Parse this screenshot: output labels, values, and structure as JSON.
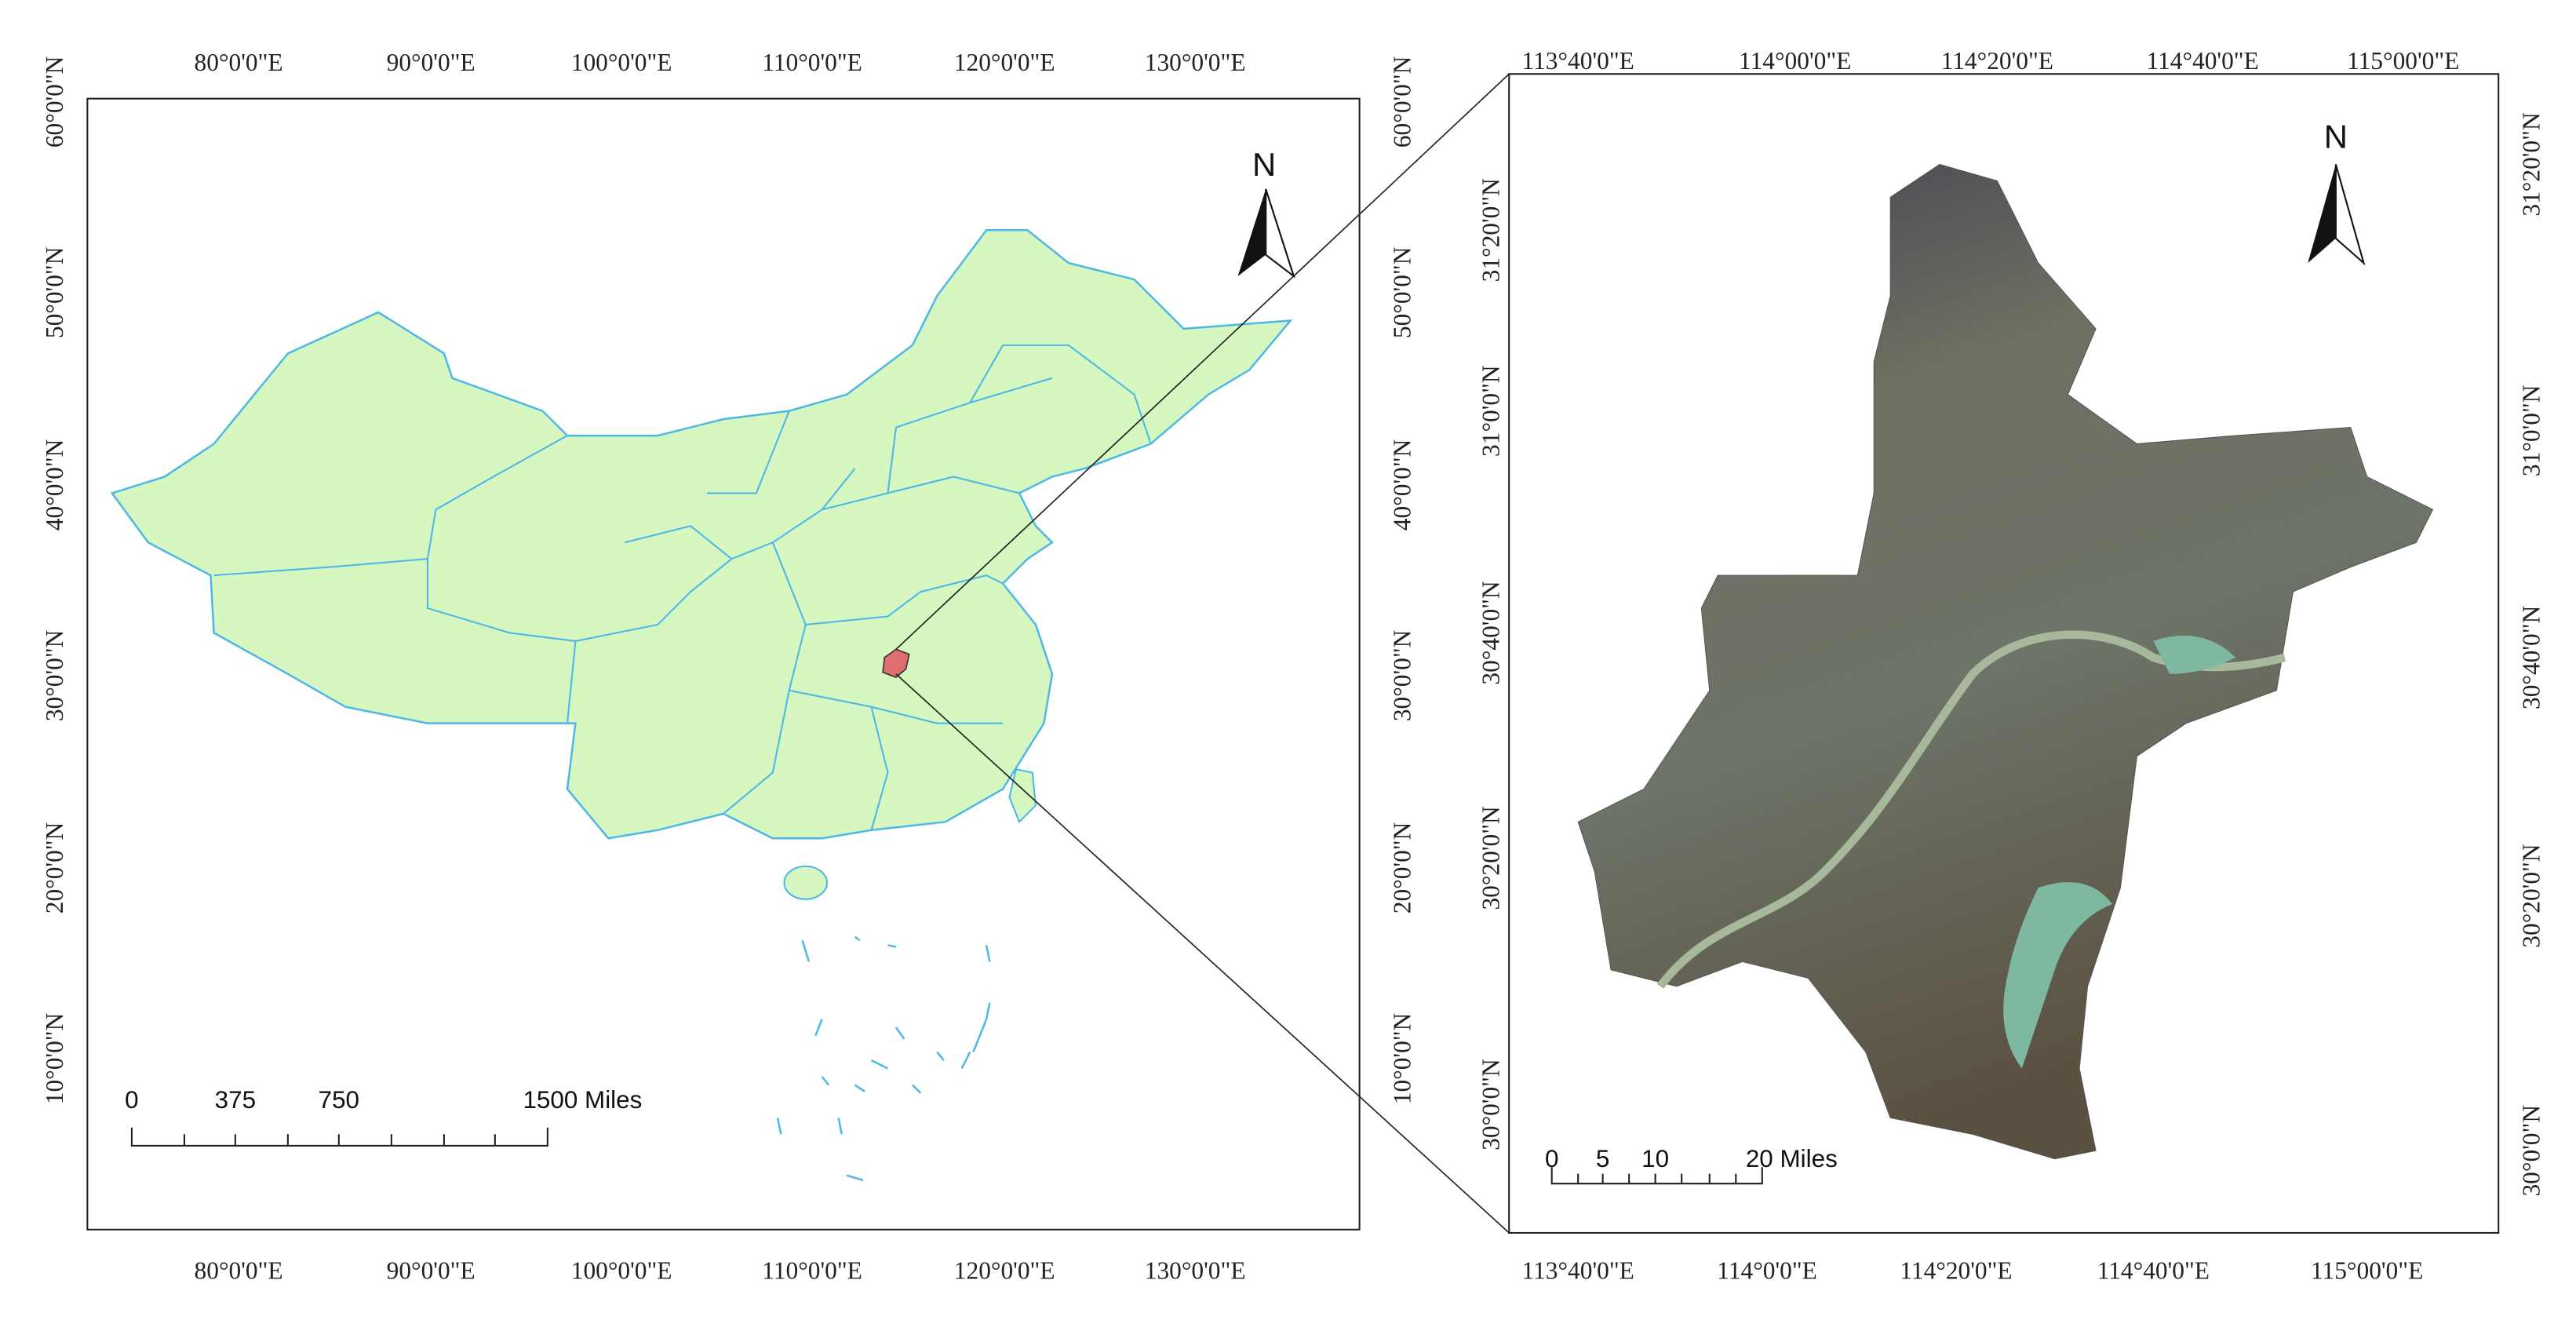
{
  "left_map": {
    "top_labels": [
      "80°0'0\"E",
      "90°0'0\"E",
      "100°0'0\"E",
      "110°0'0\"E",
      "120°0'0\"E",
      "130°0'0\"E"
    ],
    "bottom_labels": [
      "80°0'0\"E",
      "90°0'0\"E",
      "100°0'0\"E",
      "110°0'0\"E",
      "120°0'0\"E",
      "130°0'0\"E"
    ],
    "left_labels": [
      "60°0'0\"N",
      "50°0'0\"N",
      "40°0'0\"N",
      "30°0'0\"N",
      "20°0'0\"N",
      "10°0'0\"N"
    ],
    "right_labels": [
      "60°0'0\"N",
      "50°0'0\"N",
      "40°0'0\"N",
      "30°0'0\"N",
      "20°0'0\"N",
      "10°0'0\"N"
    ],
    "scale_bar": [
      "0",
      "375",
      "750",
      "1500 Miles"
    ],
    "north": "N"
  },
  "right_map": {
    "top_labels": [
      "113°40'0\"E",
      "114°00'0\"E",
      "114°20'0\"E",
      "114°40'0\"E",
      "115°00'0\"E"
    ],
    "bottom_labels": [
      "113°40'0\"E",
      "114°0'0\"E",
      "114°20'0\"E",
      "114°40'0\"E",
      "115°00'0\"E"
    ],
    "left_labels": [
      "31°20'0\"N",
      "31°0'0\"N",
      "30°40'0\"N",
      "30°20'0\"N",
      "30°0'0\"N"
    ],
    "right_labels": [
      "31°20'0\"N",
      "31°0'0\"N",
      "30°40'0\"N",
      "30°20'0\"N",
      "30°0'0\"N"
    ],
    "scale_bar": [
      "0",
      "5",
      "10",
      "20 Miles"
    ],
    "north": "N"
  }
}
